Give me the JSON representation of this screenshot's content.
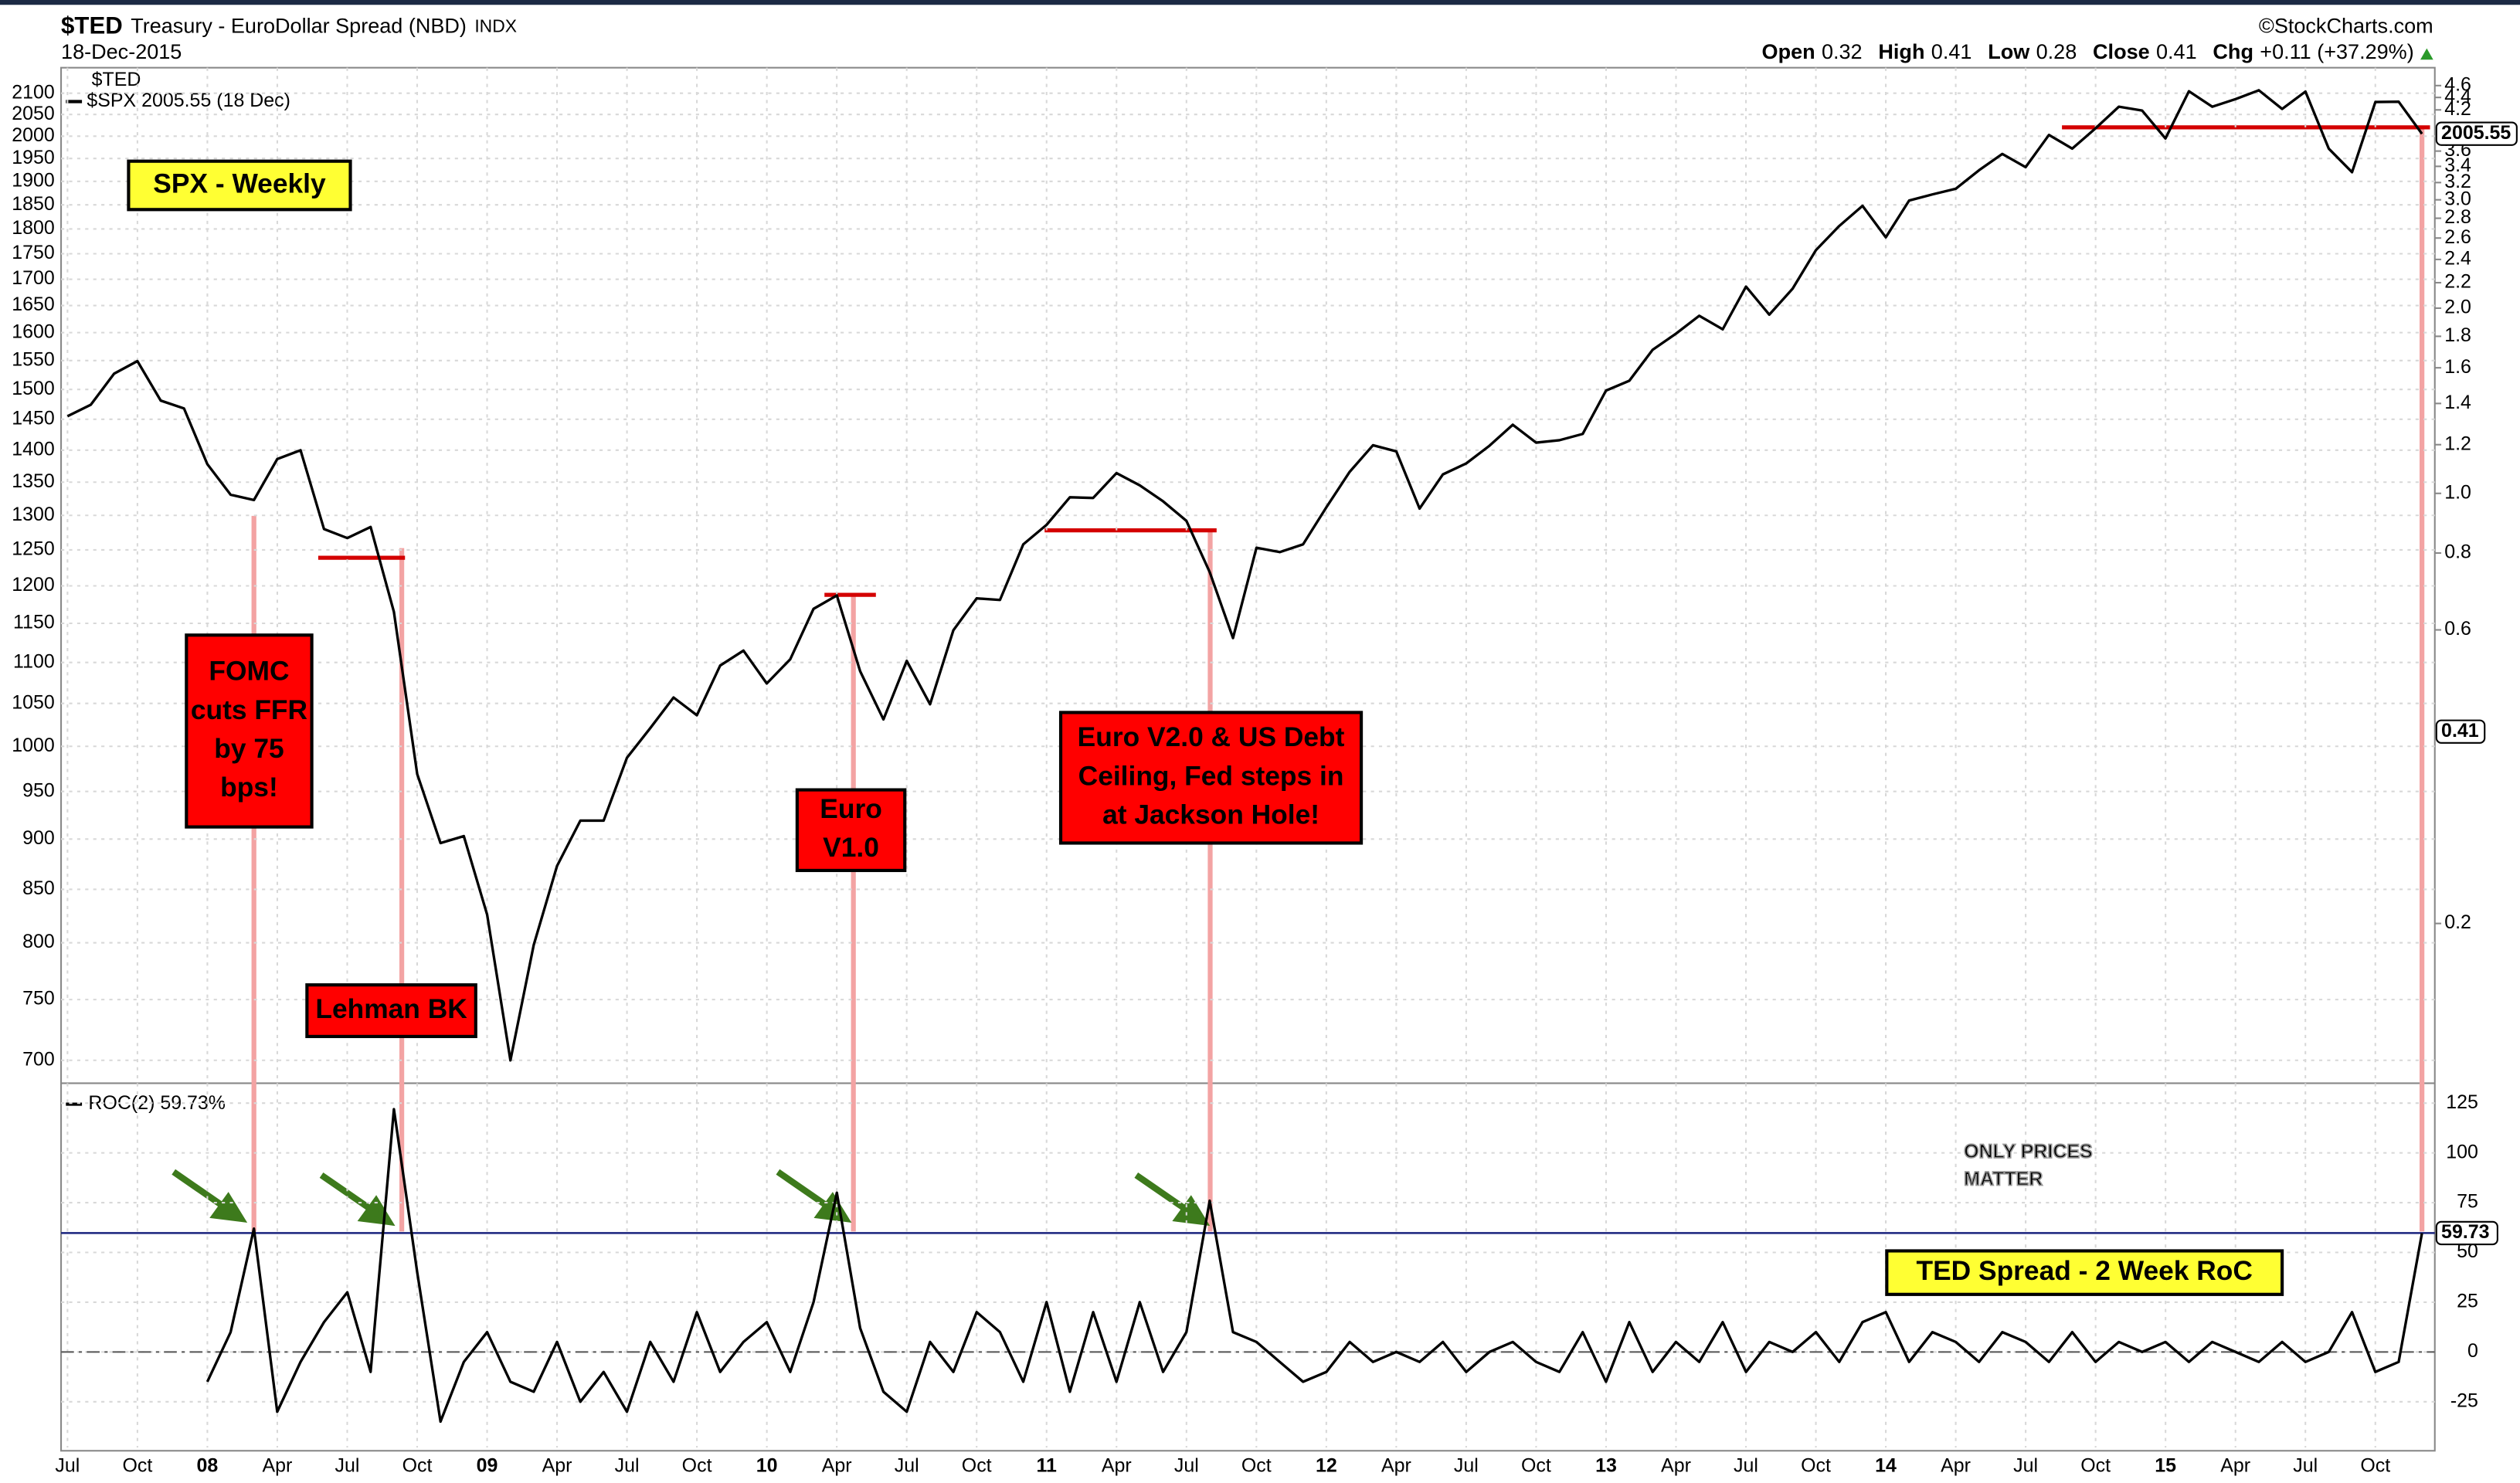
{
  "chart_data": [
    {
      "type": "line",
      "title": "$TED",
      "subtitle": "Treasury - EuroDollar Spread (NBD)",
      "exchange": "INDX",
      "date": "18-Dec-2015",
      "source": "©StockCharts.com",
      "quote": [
        {
          "label": "Open",
          "value": 0.32
        },
        {
          "label": "High",
          "value": 0.41
        },
        {
          "label": "Low",
          "value": 0.28
        },
        {
          "label": "Close",
          "value": 0.41
        }
      ],
      "change_label": "Chg",
      "change": "+0.11 (+37.29%)",
      "legend_title": "$TED",
      "categories": [
        "Jul",
        null,
        null,
        "Oct",
        null,
        null,
        "08",
        null,
        null,
        "Apr",
        null,
        null,
        "Jul",
        null,
        null,
        "Oct",
        null,
        null,
        "09",
        null,
        null,
        "Apr",
        null,
        null,
        "Jul",
        null,
        null,
        "Oct",
        null,
        null,
        "10",
        null,
        null,
        "Apr",
        null,
        null,
        "Jul",
        null,
        null,
        "Oct",
        null,
        null,
        "11",
        null,
        null,
        "Apr",
        null,
        null,
        "Jul",
        null,
        null,
        "Oct",
        null,
        null,
        "12",
        null,
        null,
        "Apr",
        null,
        null,
        "Jul",
        null,
        null,
        "Oct",
        null,
        null,
        "13",
        null,
        null,
        "Apr",
        null,
        null,
        "Jul",
        null,
        null,
        "Oct",
        null,
        null,
        "14",
        null,
        null,
        "Apr",
        null,
        null,
        "Jul",
        null,
        null,
        "Oct",
        null,
        null,
        "15",
        null,
        null,
        "Apr",
        null,
        null,
        "Jul",
        null,
        null,
        "Oct",
        null,
        null
      ],
      "series": [
        {
          "name": "$SPX 2005.55 (18 Dec)",
          "color": "#000000",
          "values": [
            1455,
            1474,
            1527,
            1549,
            1481,
            1468,
            1378,
            1331,
            1323,
            1386,
            1400,
            1280,
            1267,
            1283,
            1165,
            969,
            896,
            903,
            826,
            700,
            798,
            873,
            919,
            919,
            987,
            1021,
            1057,
            1036,
            1096,
            1115,
            1074,
            1104,
            1169,
            1187,
            1089,
            1031,
            1102,
            1049,
            1141,
            1183,
            1181,
            1258,
            1286,
            1327,
            1326,
            1364,
            1345,
            1321,
            1292,
            1219,
            1131,
            1253,
            1247,
            1258,
            1312,
            1366,
            1408,
            1398,
            1310,
            1362,
            1379,
            1407,
            1441,
            1412,
            1416,
            1426,
            1498,
            1515,
            1569,
            1598,
            1631,
            1606,
            1686,
            1633,
            1682,
            1757,
            1806,
            1848,
            1783,
            1859,
            1872,
            1884,
            1924,
            1960,
            1931,
            2003,
            1972,
            2018,
            2068,
            2059,
            1995,
            2105,
            2068,
            2086,
            2107,
            2063,
            2104,
            1972,
            1920,
            2079,
            2080,
            2005.55
          ]
        }
      ],
      "last_close": 2005.55,
      "ted_current": 0.41,
      "log_scale": true,
      "ylim": [
        682,
        2150
      ],
      "yticks": [
        700,
        750,
        800,
        850,
        900,
        950,
        1000,
        1050,
        1100,
        1150,
        1200,
        1250,
        1300,
        1350,
        1400,
        1450,
        1500,
        1550,
        1600,
        1650,
        1700,
        1750,
        1800,
        1850,
        1900,
        1950,
        2000,
        2050,
        2100
      ],
      "y2lim": [
        0.11,
        4.83
      ],
      "y2ticks": [
        0.2,
        0.6,
        0.8,
        {
          "value": 1,
          "label": "1.0"
        },
        1.2,
        1.4,
        1.6,
        1.8,
        {
          "value": 2,
          "label": "2.0"
        },
        2.2,
        2.4,
        2.6,
        2.8,
        {
          "value": 3,
          "label": "3.0"
        },
        3.2,
        3.4,
        3.6,
        4.2,
        4.4,
        4.6
      ],
      "grid": true
    },
    {
      "type": "line",
      "series": [
        {
          "name": "ROC(2) 59.73%",
          "color": "#000000",
          "values": [
            null,
            null,
            null,
            null,
            null,
            null,
            -15,
            10,
            62,
            -30,
            -5,
            15,
            30,
            -10,
            122,
            40,
            -35,
            -5,
            10,
            -15,
            -20,
            5,
            -25,
            -10,
            -30,
            5,
            -15,
            20,
            -10,
            5,
            15,
            -10,
            25,
            80,
            12,
            -20,
            -30,
            5,
            -10,
            20,
            10,
            -15,
            25,
            -20,
            20,
            -15,
            25,
            -10,
            10,
            76,
            10,
            5,
            -5,
            -15,
            -10,
            5,
            -5,
            0,
            -5,
            5,
            -10,
            0,
            5,
            -5,
            -10,
            10,
            -15,
            15,
            -10,
            5,
            -5,
            15,
            -10,
            5,
            0,
            10,
            -5,
            15,
            20,
            -5,
            10,
            5,
            -5,
            10,
            5,
            -5,
            10,
            -5,
            5,
            0,
            5,
            -5,
            5,
            0,
            -5,
            5,
            -5,
            0,
            20,
            -10,
            -5,
            59.73
          ]
        }
      ],
      "current": 59.73,
      "ylim": [
        -48,
        135
      ],
      "yticks": [
        -25,
        0,
        25,
        50,
        75,
        100,
        125
      ],
      "grid": true
    }
  ],
  "annotations": [
    {
      "lines": [
        "SPX - Weekly"
      ],
      "color": "#ffff33"
    },
    {
      "lines": [
        "FOMC",
        "cuts FFR",
        "by 75",
        "bps!"
      ],
      "color": "#ff0000"
    },
    {
      "lines": [
        "Lehman BK"
      ],
      "color": "#ff0000"
    },
    {
      "lines": [
        "Euro",
        "V1.0"
      ],
      "color": "#ff0000"
    },
    {
      "lines": [
        "Euro V2.0 & US Debt",
        "Ceiling, Fed steps in",
        "at Jackson Hole!"
      ],
      "color": "#ff0000"
    },
    {
      "lines": [
        "TED Spread - 2 Week RoC"
      ],
      "color": "#ffff33"
    }
  ],
  "watermark": [
    "ONLY PRICES",
    "MATTER"
  ]
}
